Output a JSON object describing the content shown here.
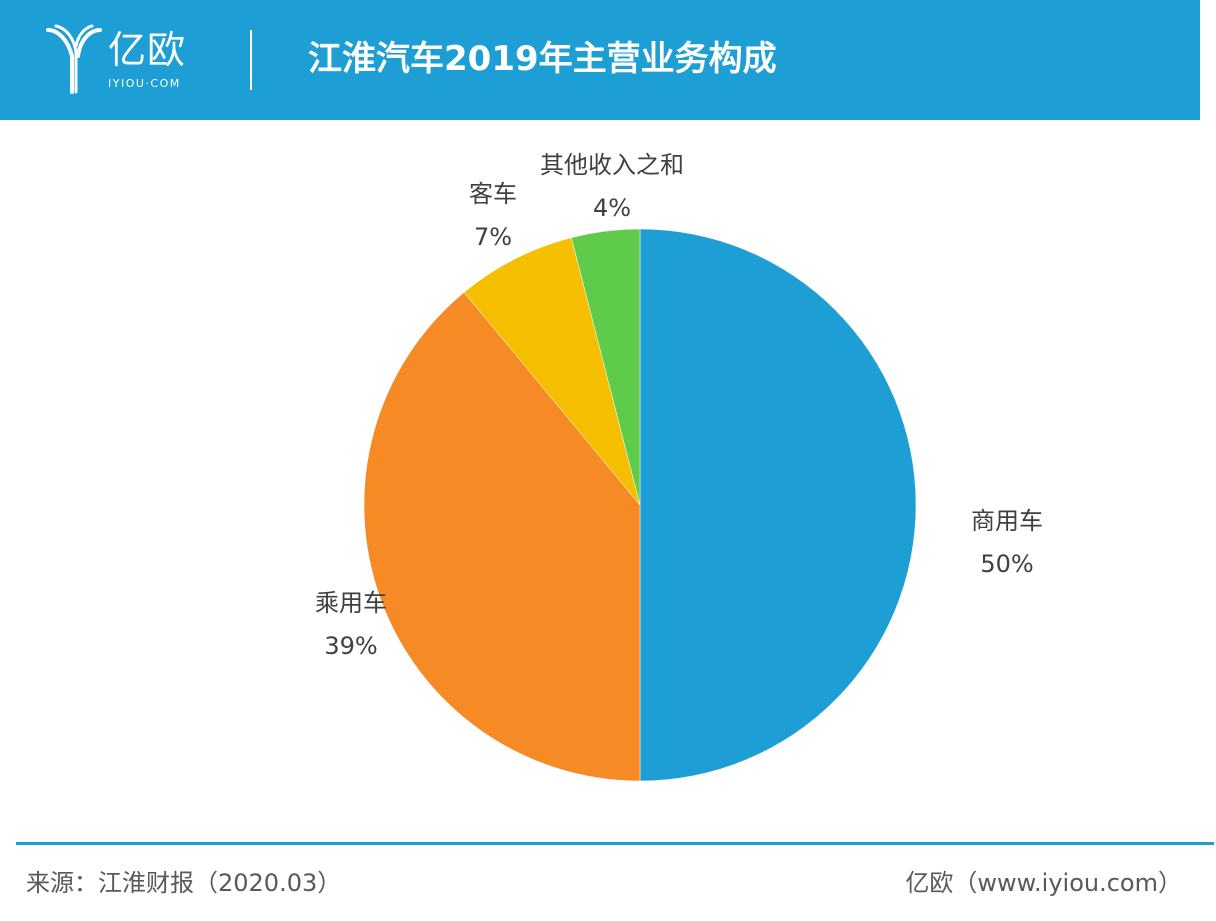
{
  "header": {
    "logo_text": "亿欧",
    "logo_sub": "IYIOU·COM",
    "title": "江淮汽车2019年主营业务构成",
    "background_color": "#1d9fd6"
  },
  "chart_data": {
    "type": "pie",
    "title": "江淮汽车2019年主营业务构成",
    "categories": [
      "商用车",
      "乘用车",
      "客车",
      "其他收入之和"
    ],
    "values": [
      50,
      39,
      7,
      4
    ],
    "labels": [
      "50%",
      "39%",
      "7%",
      "4%"
    ],
    "colors": [
      "#1d9fd6",
      "#f68b26",
      "#f5bf00",
      "#5fcb4b"
    ],
    "start": "12 o'clock",
    "direction": "clockwise"
  },
  "footer": {
    "source": "来源：江淮财报（2020.03）",
    "brand": "亿欧（www.iyiou.com）",
    "line_color": "#1d9fd6"
  }
}
